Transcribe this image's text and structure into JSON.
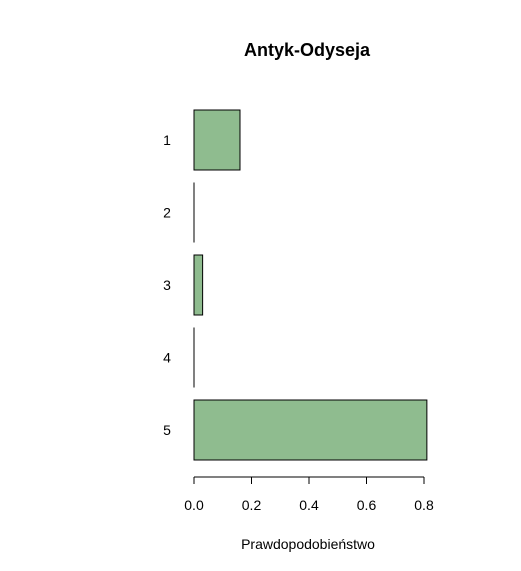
{
  "chart_data": {
    "type": "bar",
    "orientation": "horizontal",
    "title": "Antyk-Odyseja",
    "xlabel": "Prawdopodobieństwo",
    "ylabel": "",
    "categories": [
      "1",
      "2",
      "3",
      "4",
      "5"
    ],
    "values": [
      0.16,
      0.0,
      0.03,
      0.0,
      0.81
    ],
    "xlim": [
      0,
      0.8
    ],
    "xticks": [
      0.0,
      0.2,
      0.4,
      0.6,
      0.8
    ],
    "xtick_labels": [
      "0.0",
      "0.2",
      "0.4",
      "0.6",
      "0.8"
    ],
    "bar_color": "#8fbc8f",
    "grid": false,
    "legend": "none"
  }
}
